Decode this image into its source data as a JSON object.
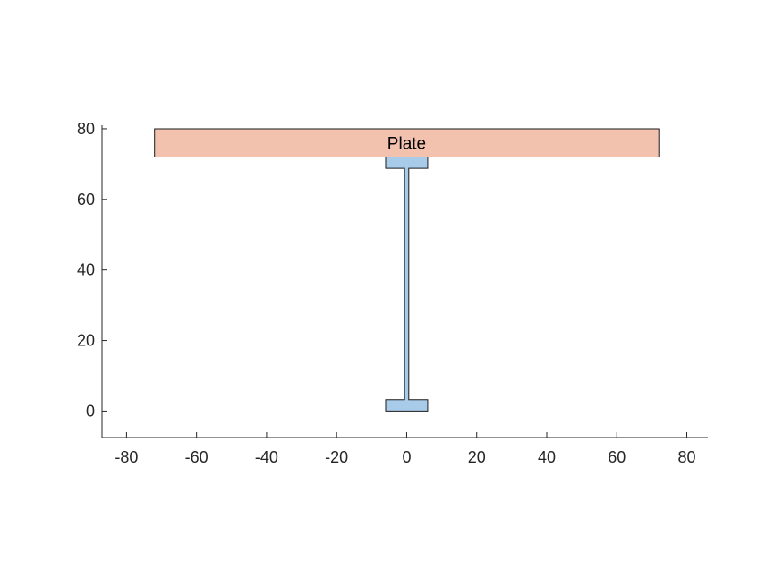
{
  "chart_data": {
    "type": "diagram-plot",
    "title": "",
    "xlabel": "",
    "ylabel": "",
    "xlim": [
      -87,
      86
    ],
    "ylim": [
      -7.5,
      81
    ],
    "xticks": [
      -80,
      -60,
      -40,
      -20,
      0,
      20,
      40,
      60,
      80
    ],
    "yticks": [
      0,
      20,
      40,
      60,
      80
    ],
    "xtick_labels": [
      "-80",
      "-60",
      "-40",
      "-20",
      "0",
      "20",
      "40",
      "60",
      "80"
    ],
    "ytick_labels": [
      "0",
      "20",
      "40",
      "60",
      "80"
    ],
    "box": "off",
    "grid": false,
    "shapes": [
      {
        "name": "plate",
        "label": "Plate",
        "color": "#f2c2af",
        "polygon": [
          [
            -72,
            72
          ],
          [
            72,
            72
          ],
          [
            72,
            80
          ],
          [
            -72,
            80
          ]
        ]
      },
      {
        "name": "i-beam",
        "label": "",
        "color": "#a8cbea",
        "polygon": [
          [
            -6,
            0
          ],
          [
            6,
            0
          ],
          [
            6,
            3.2
          ],
          [
            0.6,
            3.2
          ],
          [
            0.6,
            68.8
          ],
          [
            6,
            68.8
          ],
          [
            6,
            72
          ],
          [
            -6,
            72
          ],
          [
            -6,
            68.8
          ],
          [
            -0.6,
            68.8
          ],
          [
            -0.6,
            3.2
          ],
          [
            -6,
            3.2
          ]
        ]
      }
    ]
  }
}
